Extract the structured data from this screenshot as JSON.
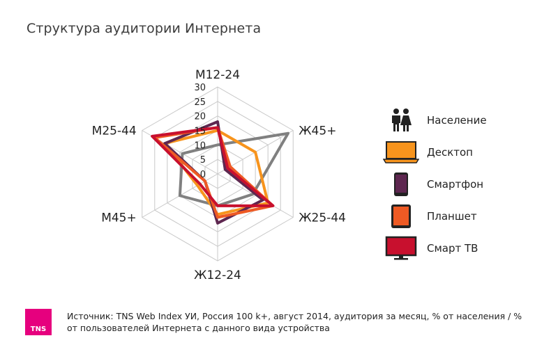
{
  "chart_data": {
    "type": "radar",
    "title": "Структура аудитории Интернета",
    "categories": [
      "М12-24",
      "Ж45+",
      "Ж25-44",
      "Ж12-24",
      "М45+",
      "М25-44"
    ],
    "radial_ticks": [
      "0",
      "5",
      "10",
      "15",
      "20",
      "25",
      "30"
    ],
    "rlim": [
      0,
      30
    ],
    "grid": true,
    "legend_position": "right",
    "series": [
      {
        "name": "Население",
        "color": "#808080",
        "values": [
          10,
          28,
          14,
          11,
          15,
          14
        ]
      },
      {
        "name": "Десктоп",
        "color": "#f7941d",
        "values": [
          15,
          15,
          20,
          14,
          8,
          21
        ]
      },
      {
        "name": "Смартфон",
        "color": "#5e2750",
        "values": [
          18,
          3,
          18,
          17,
          5,
          21
        ]
      },
      {
        "name": "Планшет",
        "color": "#ee5a24",
        "values": [
          16,
          5,
          22,
          15,
          5,
          25
        ]
      },
      {
        "name": "Смарт ТВ",
        "color": "#c8102e",
        "values": [
          16,
          4,
          22,
          11,
          7,
          26
        ]
      }
    ]
  },
  "legend": [
    {
      "label": "Население",
      "icon": "people-icon"
    },
    {
      "label": "Десктоп",
      "icon": "laptop-icon"
    },
    {
      "label": "Смартфон",
      "icon": "smartphone-icon"
    },
    {
      "label": "Планшет",
      "icon": "tablet-icon"
    },
    {
      "label": "Смарт ТВ",
      "icon": "tv-icon"
    }
  ],
  "footer": {
    "logo_text": "TNS",
    "source": "Источник: TNS Web Index УИ, Россия 100 k+, август 2014, аудитория за месяц, % от населения / % от пользователей Интернета с данного вида устройства"
  }
}
